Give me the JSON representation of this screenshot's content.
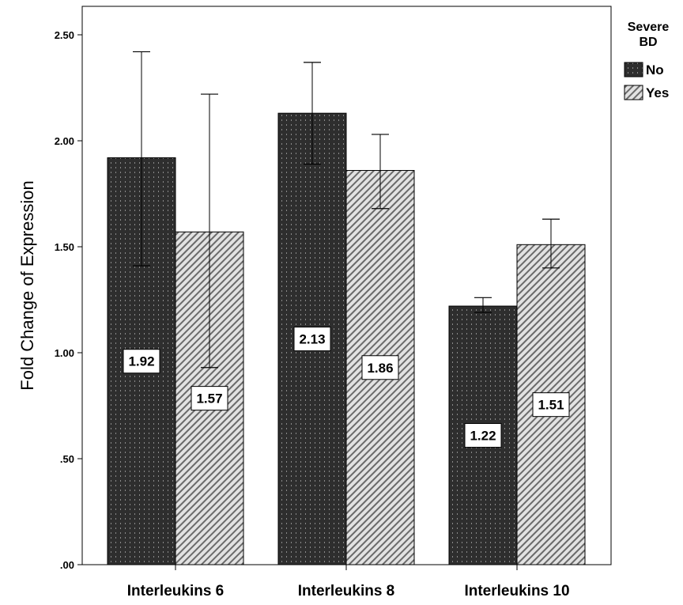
{
  "chart_data": {
    "type": "bar",
    "categories": [
      "Interleukins 6",
      "Interleukins 8",
      "Interleukins 10"
    ],
    "ylabel": "Fold Change of Expression",
    "xlabel": "",
    "ylim": [
      0,
      2.5
    ],
    "yticks": [
      0,
      0.5,
      1.0,
      1.5,
      2.0,
      2.5
    ],
    "ytick_labels": [
      ".00",
      ".50",
      "1.00",
      "1.50",
      "2.00",
      "2.50"
    ],
    "legend": {
      "title_lines": [
        "Severe",
        "BD"
      ],
      "placement": "top-right outside"
    },
    "series": [
      {
        "name": "No",
        "color": "#2e2e2e",
        "pattern": "dark dotted",
        "values": [
          1.92,
          2.13,
          1.22
        ],
        "value_labels": [
          "1.92",
          "2.13",
          "1.22"
        ],
        "error_low": [
          1.41,
          1.89,
          1.19
        ],
        "error_high": [
          2.42,
          2.37,
          1.26
        ]
      },
      {
        "name": "Yes",
        "color": "#cfcfcf",
        "pattern": "diagonal hatch",
        "values": [
          1.57,
          1.86,
          1.51
        ],
        "value_labels": [
          "1.57",
          "1.86",
          "1.51"
        ],
        "error_low": [
          0.93,
          1.68,
          1.4
        ],
        "error_high": [
          2.22,
          2.03,
          1.63
        ]
      }
    ]
  }
}
